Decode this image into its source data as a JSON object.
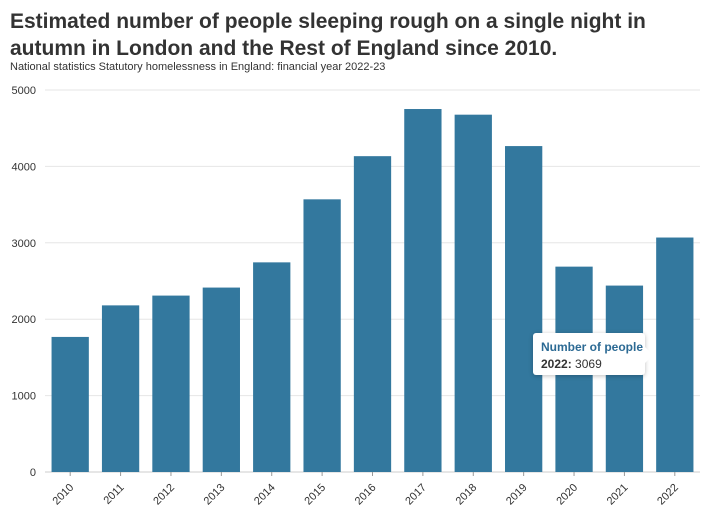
{
  "title": "Estimated number of people sleeping rough on a single night in autumn in London and the Rest of England since 2010.",
  "subtitle": "National statistics Statutory homelessness in England: financial year 2022-23",
  "colors": {
    "bar": "#33789e",
    "grid": "#e6e6e6",
    "axis": "#333333"
  },
  "tooltip": {
    "heading": "Number of people",
    "category": "2022",
    "separator": ":",
    "value": "3069"
  },
  "chart_data": {
    "type": "bar",
    "title": "Estimated number of people sleeping rough on a single night in autumn in London and the Rest of England since 2010.",
    "subtitle": "National statistics Statutory homelessness in England: financial year 2022-23",
    "xlabel": "",
    "ylabel": "",
    "ylim": [
      0,
      5000
    ],
    "yticks": [
      0,
      1000,
      2000,
      3000,
      4000,
      5000
    ],
    "grid": true,
    "categories": [
      "2010",
      "2011",
      "2012",
      "2013",
      "2014",
      "2015",
      "2016",
      "2017",
      "2018",
      "2019",
      "2020",
      "2021",
      "2022"
    ],
    "series": [
      {
        "values": [
          1768,
          2181,
          2309,
          2414,
          2744,
          3569,
          4134,
          4751,
          4677,
          4266,
          2688,
          2440,
          3069
        ]
      }
    ]
  }
}
